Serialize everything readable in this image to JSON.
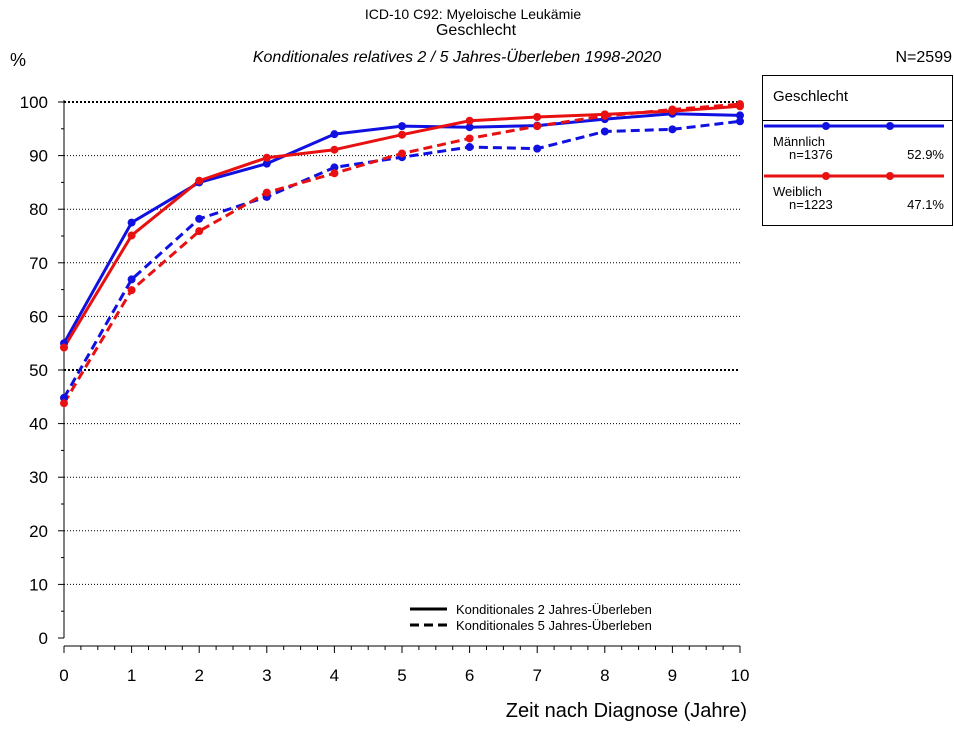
{
  "header": {
    "title": "ICD-10 C92: Myeloische Leukämie",
    "group_title": "Geschlecht",
    "subtitle": "Konditionales relatives 2 / 5 Jahres-Überleben 1998-2020",
    "y_unit": "%",
    "n_total": "N=2599"
  },
  "legend": {
    "title": "Geschlecht",
    "groups": [
      {
        "name": "Männlich",
        "n": "n=1376",
        "pct": "52.9%",
        "color": "#1010e0"
      },
      {
        "name": "Weiblich",
        "n": "n=1223",
        "pct": "47.1%",
        "color": "#e81010"
      }
    ],
    "styles": [
      {
        "label": "Konditionales 2 Jahres-Überleben",
        "dash": "solid"
      },
      {
        "label": "Konditionales 5 Jahres-Überleben",
        "dash": "dashed"
      }
    ]
  },
  "chart_data": {
    "type": "line",
    "title": "ICD-10 C92: Myeloische Leukämie",
    "xlabel": "Zeit nach Diagnose (Jahre)",
    "ylabel": "%",
    "xlim": [
      0,
      10
    ],
    "ylim": [
      0,
      100
    ],
    "x": [
      0,
      1,
      2,
      3,
      4,
      5,
      6,
      7,
      8,
      9,
      10
    ],
    "x_ticks": [
      "0",
      "1",
      "2",
      "3",
      "4",
      "5",
      "6",
      "7",
      "8",
      "9",
      "10"
    ],
    "y_ticks": [
      "0",
      "10",
      "20",
      "30",
      "40",
      "50",
      "60",
      "70",
      "80",
      "90",
      "100"
    ],
    "grid": "horizontal dotted",
    "series": [
      {
        "name": "Männlich",
        "style": "Konditionales 2 Jahres-Überleben",
        "color": "#1010e0",
        "dash": "solid",
        "values": [
          55.0,
          77.5,
          85.0,
          88.5,
          94.0,
          95.5,
          95.3,
          95.6,
          96.8,
          97.8,
          97.5
        ]
      },
      {
        "name": "Weiblich",
        "style": "Konditionales 2 Jahres-Überleben",
        "color": "#e81010",
        "dash": "solid",
        "values": [
          54.2,
          75.1,
          85.3,
          89.6,
          91.1,
          93.9,
          96.5,
          97.2,
          97.7,
          98.3,
          99.2
        ]
      },
      {
        "name": "Männlich",
        "style": "Konditionales 5 Jahres-Überleben",
        "color": "#1010e0",
        "dash": "dashed",
        "values": [
          44.8,
          66.9,
          78.2,
          82.3,
          87.8,
          89.7,
          91.6,
          91.3,
          94.5,
          94.9,
          96.4
        ]
      },
      {
        "name": "Weiblich",
        "style": "Konditionales 5 Jahres-Überleben",
        "color": "#e81010",
        "dash": "dashed",
        "values": [
          43.8,
          64.9,
          75.9,
          83.1,
          86.7,
          90.4,
          93.2,
          95.5,
          97.4,
          98.6,
          99.6
        ]
      }
    ]
  }
}
